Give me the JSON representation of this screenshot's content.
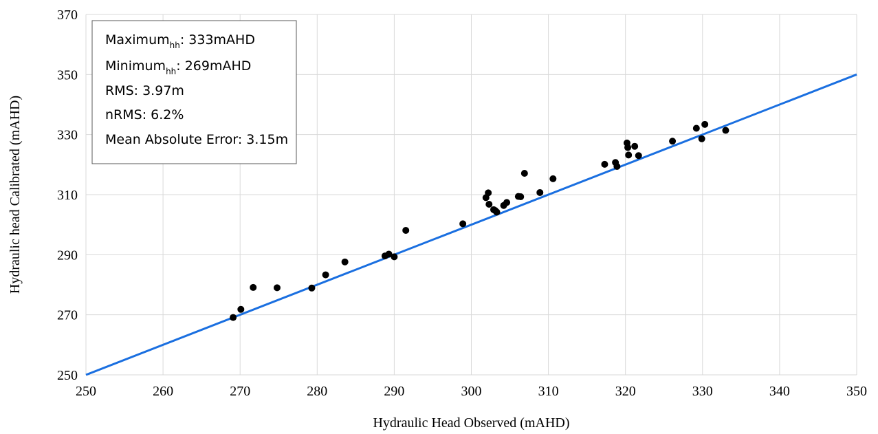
{
  "chart_data": {
    "type": "scatter",
    "xlabel": "Hydraulic Head Observed (mAHD)",
    "ylabel": "Hydraulic head Calibrated (mAHD)",
    "xlim": [
      250,
      350
    ],
    "ylim": [
      250,
      370
    ],
    "xticks": [
      "250",
      "260",
      "270",
      "280",
      "290",
      "300",
      "310",
      "320",
      "330",
      "340",
      "350"
    ],
    "yticks": [
      "250",
      "270",
      "290",
      "310",
      "330",
      "350",
      "370"
    ],
    "grid": true,
    "point_color": "#000000",
    "line_color": "#1a6fe0",
    "reference_line": {
      "x": [
        250,
        350
      ],
      "y": [
        250,
        350
      ]
    },
    "points": [
      {
        "x": 269.1,
        "y": 269.1
      },
      {
        "x": 270.1,
        "y": 271.8
      },
      {
        "x": 271.7,
        "y": 279.1
      },
      {
        "x": 274.8,
        "y": 279.0
      },
      {
        "x": 279.3,
        "y": 278.9
      },
      {
        "x": 281.1,
        "y": 283.3
      },
      {
        "x": 283.6,
        "y": 287.6
      },
      {
        "x": 288.8,
        "y": 289.6
      },
      {
        "x": 289.3,
        "y": 290.2
      },
      {
        "x": 290.0,
        "y": 289.3
      },
      {
        "x": 291.5,
        "y": 298.1
      },
      {
        "x": 298.9,
        "y": 300.3
      },
      {
        "x": 301.9,
        "y": 309.0
      },
      {
        "x": 302.2,
        "y": 310.6
      },
      {
        "x": 302.3,
        "y": 306.8
      },
      {
        "x": 302.9,
        "y": 305.0
      },
      {
        "x": 303.1,
        "y": 304.7
      },
      {
        "x": 303.3,
        "y": 304.2
      },
      {
        "x": 304.2,
        "y": 306.4
      },
      {
        "x": 304.6,
        "y": 307.4
      },
      {
        "x": 306.1,
        "y": 309.4
      },
      {
        "x": 306.4,
        "y": 309.3
      },
      {
        "x": 306.9,
        "y": 317.1
      },
      {
        "x": 308.9,
        "y": 310.7
      },
      {
        "x": 310.6,
        "y": 315.3
      },
      {
        "x": 317.3,
        "y": 320.1
      },
      {
        "x": 318.7,
        "y": 320.7
      },
      {
        "x": 318.9,
        "y": 319.4
      },
      {
        "x": 320.2,
        "y": 327.2
      },
      {
        "x": 320.3,
        "y": 325.7
      },
      {
        "x": 320.4,
        "y": 323.2
      },
      {
        "x": 321.2,
        "y": 326.1
      },
      {
        "x": 321.7,
        "y": 323.0
      },
      {
        "x": 326.1,
        "y": 327.8
      },
      {
        "x": 329.2,
        "y": 332.1
      },
      {
        "x": 329.9,
        "y": 328.6
      },
      {
        "x": 330.3,
        "y": 333.4
      },
      {
        "x": 333.0,
        "y": 331.4
      }
    ]
  },
  "stats": {
    "max_prefix": "Maximum",
    "max_sub": "hh",
    "max_suffix": ": 333mAHD",
    "min_prefix": "Minimum",
    "min_sub": "hh",
    "min_suffix": ": 269mAHD",
    "rms": "RMS: 3.97m",
    "nrms": "nRMS: 6.2%",
    "mae": "Mean Absolute Error: 3.15m"
  }
}
